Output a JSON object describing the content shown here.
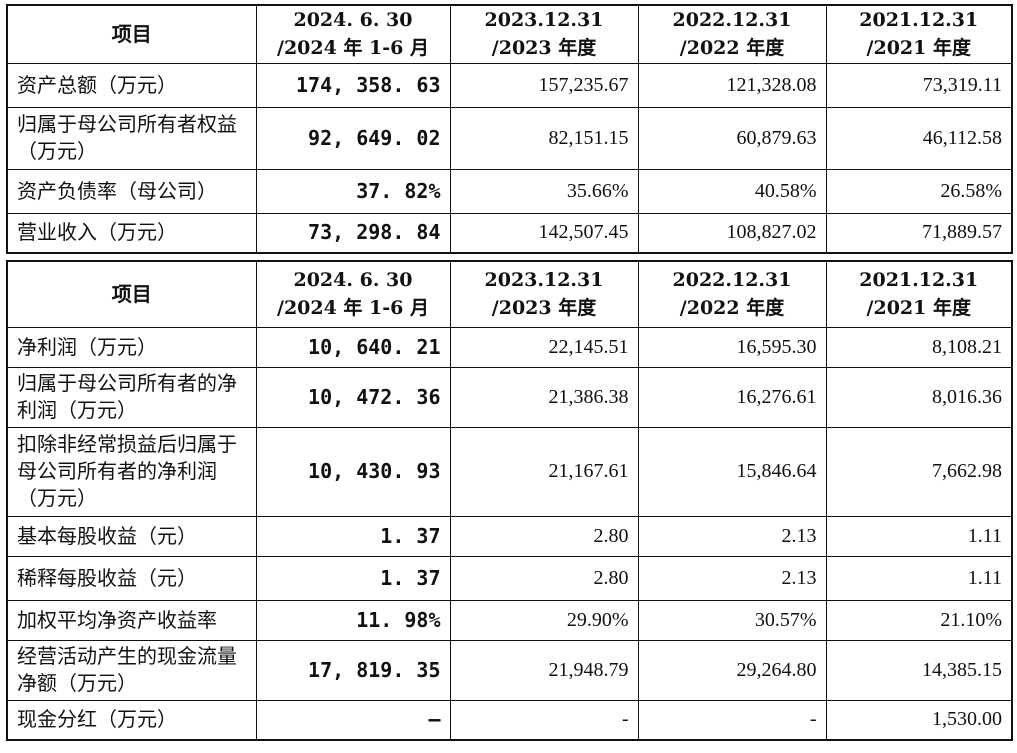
{
  "header": {
    "item": "项目",
    "col1_line1": "2024. 6. 30",
    "col1_line2": "/2024 年 1-6 月",
    "col2_line1": "2023.12.31",
    "col2_line2": "/2023 年度",
    "col3_line1": "2022.12.31",
    "col3_line2": "/2022 年度",
    "col4_line1": "2021.12.31",
    "col4_line2": "/2021 年度"
  },
  "table1": {
    "rows": [
      {
        "label": "资产总额（万元）",
        "v2024": "174, 358. 63",
        "v2023": "157,235.67",
        "v2022": "121,328.08",
        "v2021": "73,319.11"
      },
      {
        "label": "归属于母公司所有者权益（万元）",
        "v2024": "92, 649. 02",
        "v2023": "82,151.15",
        "v2022": "60,879.63",
        "v2021": "46,112.58"
      },
      {
        "label": "资产负债率（母公司）",
        "v2024": "37. 82%",
        "v2023": "35.66%",
        "v2022": "40.58%",
        "v2021": "26.58%"
      },
      {
        "label": "营业收入（万元）",
        "v2024": "73, 298. 84",
        "v2023": "142,507.45",
        "v2022": "108,827.02",
        "v2021": "71,889.57"
      }
    ]
  },
  "table2": {
    "rows": [
      {
        "label": "净利润（万元）",
        "v2024": "10, 640. 21",
        "v2023": "22,145.51",
        "v2022": "16,595.30",
        "v2021": "8,108.21"
      },
      {
        "label": "归属于母公司所有者的净利润（万元）",
        "v2024": "10, 472. 36",
        "v2023": "21,386.38",
        "v2022": "16,276.61",
        "v2021": "8,016.36"
      },
      {
        "label": "扣除非经常损益后归属于母公司所有者的净利润（万元）",
        "v2024": "10, 430. 93",
        "v2023": "21,167.61",
        "v2022": "15,846.64",
        "v2021": "7,662.98"
      },
      {
        "label": "基本每股收益（元）",
        "v2024": "1. 37",
        "v2023": "2.80",
        "v2022": "2.13",
        "v2021": "1.11"
      },
      {
        "label": "稀释每股收益（元）",
        "v2024": "1. 37",
        "v2023": "2.80",
        "v2022": "2.13",
        "v2021": "1.11"
      },
      {
        "label": "加权平均净资产收益率",
        "v2024": "11. 98%",
        "v2023": "29.90%",
        "v2022": "30.57%",
        "v2021": "21.10%"
      },
      {
        "label": "经营活动产生的现金流量净额（万元）",
        "v2024": "17, 819. 35",
        "v2023": "21,948.79",
        "v2022": "29,264.80",
        "v2021": "14,385.15"
      },
      {
        "label": "现金分红（万元）",
        "v2024": "–",
        "v2023": "-",
        "v2022": "-",
        "v2021": "1,530.00"
      }
    ]
  }
}
